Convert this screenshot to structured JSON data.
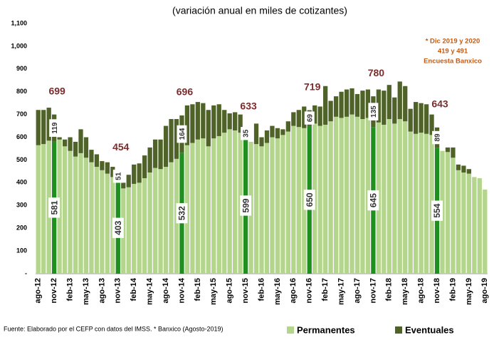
{
  "chart_data": {
    "type": "stacked_bar",
    "subtitle": "(variación anual en miles de cotizantes)",
    "note": [
      "* Dic 2019 y 2020",
      "419 y 491",
      "Encuesta Banxico"
    ],
    "source": "Fuente: Elaborado por el CEFP con datos del IMSS. * Banxico (Agosto-2019)",
    "categories": [
      "ago-12",
      null,
      null,
      "nov-12",
      null,
      null,
      "feb-13",
      null,
      null,
      "may-13",
      null,
      null,
      "ago-13",
      null,
      null,
      "nov-13",
      null,
      null,
      "feb-14",
      null,
      null,
      "may-14",
      null,
      null,
      "ago-14",
      null,
      null,
      "nov-14",
      null,
      null,
      "feb-15",
      null,
      null,
      "may-15",
      null,
      null,
      "ago-15",
      null,
      null,
      "nov-15",
      null,
      null,
      "feb-16",
      null,
      null,
      "may-16",
      null,
      null,
      "ago-16",
      null,
      null,
      "nov-16",
      null,
      null,
      "feb-17",
      null,
      null,
      "may-17",
      null,
      null,
      "ago-17",
      null,
      null,
      "nov-17",
      null,
      null,
      "feb-18",
      null,
      null,
      "may-18",
      null,
      null,
      "ago-18",
      null,
      null,
      "nov-18",
      null,
      null,
      "feb-19",
      null,
      null,
      "may-19",
      null,
      null,
      "ago-19"
    ],
    "series": [
      {
        "name": "Permanentes",
        "color": "#b3d58c",
        "highlight_color": "#1f8f1f",
        "values": [
          565,
          570,
          585,
          581,
          590,
          560,
          540,
          515,
          530,
          510,
          490,
          470,
          455,
          440,
          425,
          403,
          375,
          380,
          395,
          400,
          420,
          445,
          465,
          460,
          470,
          490,
          505,
          532,
          565,
          575,
          590,
          595,
          560,
          595,
          605,
          620,
          635,
          630,
          620,
          599,
          580,
          570,
          560,
          575,
          600,
          595,
          610,
          625,
          650,
          645,
          640,
          650,
          660,
          650,
          655,
          670,
          690,
          685,
          690,
          700,
          690,
          680,
          685,
          645,
          665,
          655,
          680,
          660,
          680,
          670,
          625,
          615,
          620,
          615,
          610,
          554,
          540,
          535,
          510,
          455,
          445,
          440,
          425,
          420,
          370
        ],
        "value_labels": [
          null,
          null,
          null,
          "581",
          null,
          null,
          null,
          null,
          null,
          null,
          null,
          null,
          null,
          null,
          null,
          "403",
          null,
          null,
          null,
          null,
          null,
          null,
          null,
          null,
          null,
          null,
          null,
          "532",
          null,
          null,
          null,
          null,
          null,
          null,
          null,
          null,
          null,
          null,
          null,
          "599",
          null,
          null,
          null,
          null,
          null,
          null,
          null,
          null,
          null,
          null,
          null,
          "650",
          null,
          null,
          null,
          null,
          null,
          null,
          null,
          null,
          null,
          null,
          null,
          "645",
          null,
          null,
          null,
          null,
          null,
          null,
          null,
          null,
          null,
          null,
          null,
          "554",
          null,
          null,
          null,
          null,
          null,
          null,
          null,
          null,
          null
        ]
      },
      {
        "name": "Eventuales",
        "color": "#4f6228",
        "values": [
          155,
          150,
          145,
          119,
          10,
          30,
          60,
          65,
          105,
          90,
          55,
          55,
          40,
          50,
          45,
          51,
          25,
          55,
          85,
          85,
          100,
          110,
          125,
          130,
          180,
          190,
          175,
          164,
          175,
          170,
          165,
          155,
          160,
          145,
          140,
          100,
          70,
          80,
          80,
          35,
          0,
          90,
          40,
          55,
          50,
          45,
          25,
          45,
          60,
          75,
          95,
          69,
          80,
          85,
          170,
          90,
          90,
          115,
          120,
          115,
          100,
          125,
          125,
          135,
          145,
          150,
          150,
          115,
          165,
          155,
          100,
          140,
          130,
          130,
          90,
          89,
          0,
          20,
          45,
          25,
          30,
          20,
          0,
          0,
          0
        ],
        "value_labels": [
          null,
          null,
          null,
          "119",
          null,
          null,
          null,
          null,
          null,
          null,
          null,
          null,
          null,
          null,
          null,
          "51",
          null,
          null,
          null,
          null,
          null,
          null,
          null,
          null,
          null,
          null,
          null,
          "164",
          null,
          null,
          null,
          null,
          null,
          null,
          null,
          null,
          null,
          null,
          null,
          "35",
          null,
          null,
          null,
          null,
          null,
          null,
          null,
          null,
          null,
          null,
          null,
          "69",
          null,
          null,
          null,
          null,
          null,
          null,
          null,
          null,
          null,
          null,
          null,
          "135",
          null,
          null,
          null,
          null,
          null,
          null,
          null,
          null,
          null,
          null,
          null,
          "89",
          null,
          null,
          null,
          null,
          null,
          null,
          null,
          null,
          null
        ]
      }
    ],
    "total_labels": [
      null,
      null,
      null,
      "699",
      null,
      null,
      null,
      null,
      null,
      null,
      null,
      null,
      null,
      null,
      null,
      "454",
      null,
      null,
      null,
      null,
      null,
      null,
      null,
      null,
      null,
      null,
      null,
      "696",
      null,
      null,
      null,
      null,
      null,
      null,
      null,
      null,
      null,
      null,
      null,
      "633",
      null,
      null,
      null,
      null,
      null,
      null,
      null,
      null,
      null,
      null,
      null,
      "719",
      null,
      null,
      null,
      null,
      null,
      null,
      null,
      null,
      null,
      null,
      null,
      "780",
      null,
      null,
      null,
      null,
      null,
      null,
      null,
      null,
      null,
      null,
      null,
      "643",
      null,
      null,
      null,
      null,
      null,
      null,
      null,
      null,
      null
    ],
    "ylim": [
      0,
      1100
    ],
    "yticks": [
      {
        "value": 0,
        "label": "-"
      },
      100,
      200,
      300,
      400,
      500,
      600,
      700,
      800,
      900,
      {
        "value": 1000,
        "label": "1,000"
      },
      {
        "value": 1100,
        "label": "1,100"
      }
    ],
    "grid": false,
    "legend": "bottom"
  }
}
